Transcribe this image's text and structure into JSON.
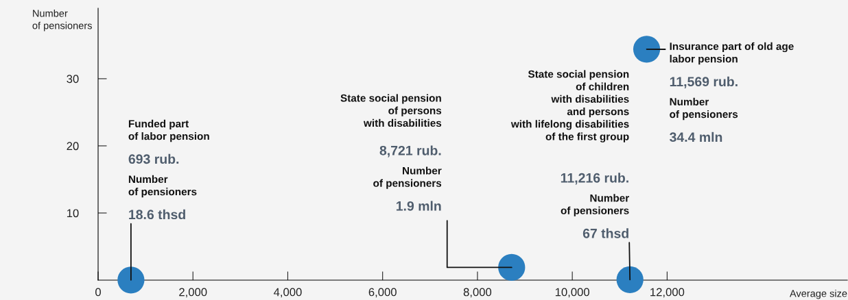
{
  "chart_data": {
    "type": "scatter",
    "xlabel": "Average size",
    "ylabel": "Number\nof pensioners",
    "xlim": [
      0,
      15800
    ],
    "ylim": [
      0,
      40.5
    ],
    "xticks": [
      0,
      {
        "value": 2000,
        "label": "2,000"
      },
      {
        "value": 4000,
        "label": "4,000"
      },
      {
        "value": 6000,
        "label": "6,000"
      },
      {
        "value": 8000,
        "label": "8,000"
      },
      {
        "value": 10000,
        "label": "10,000"
      },
      {
        "value": 12000,
        "label": "12,000"
      }
    ],
    "yticks": [
      10,
      20,
      30
    ],
    "grid": false,
    "legend": false,
    "marker": "circle",
    "series": [
      {
        "color": "#2b7fc0",
        "x": [
          693,
          8721,
          11216,
          11569
        ],
        "values": [
          0.0186,
          1.9,
          0.067,
          34.4
        ]
      }
    ],
    "annotations": [
      "Funded part\nof labor pension",
      "693 rub.",
      "Number\nof pensioners",
      {
        "text": "18.6 thsd",
        "x": 693,
        "y": 0.0186
      },
      "State social pension\nof persons\nwith disabilities",
      "8,721 rub.",
      "Number\nof pensioners",
      {
        "text": "1.9 mln",
        "x": 8721,
        "y": 1.9
      },
      "State social pension\nof children\nwith disabilities\nand persons\nwith lifelong disabilities\nof the first group",
      "11,216 rub.",
      "Number\nof pensioners",
      {
        "text": "67 thsd",
        "x": 11216,
        "y": 0.067
      },
      {
        "text": "Insurance part of old age\nlabor pension",
        "x": 11569,
        "y": 34.4
      },
      "11,569 rub.",
      "Number\nof pensioners",
      "34.4 mln"
    ]
  }
}
